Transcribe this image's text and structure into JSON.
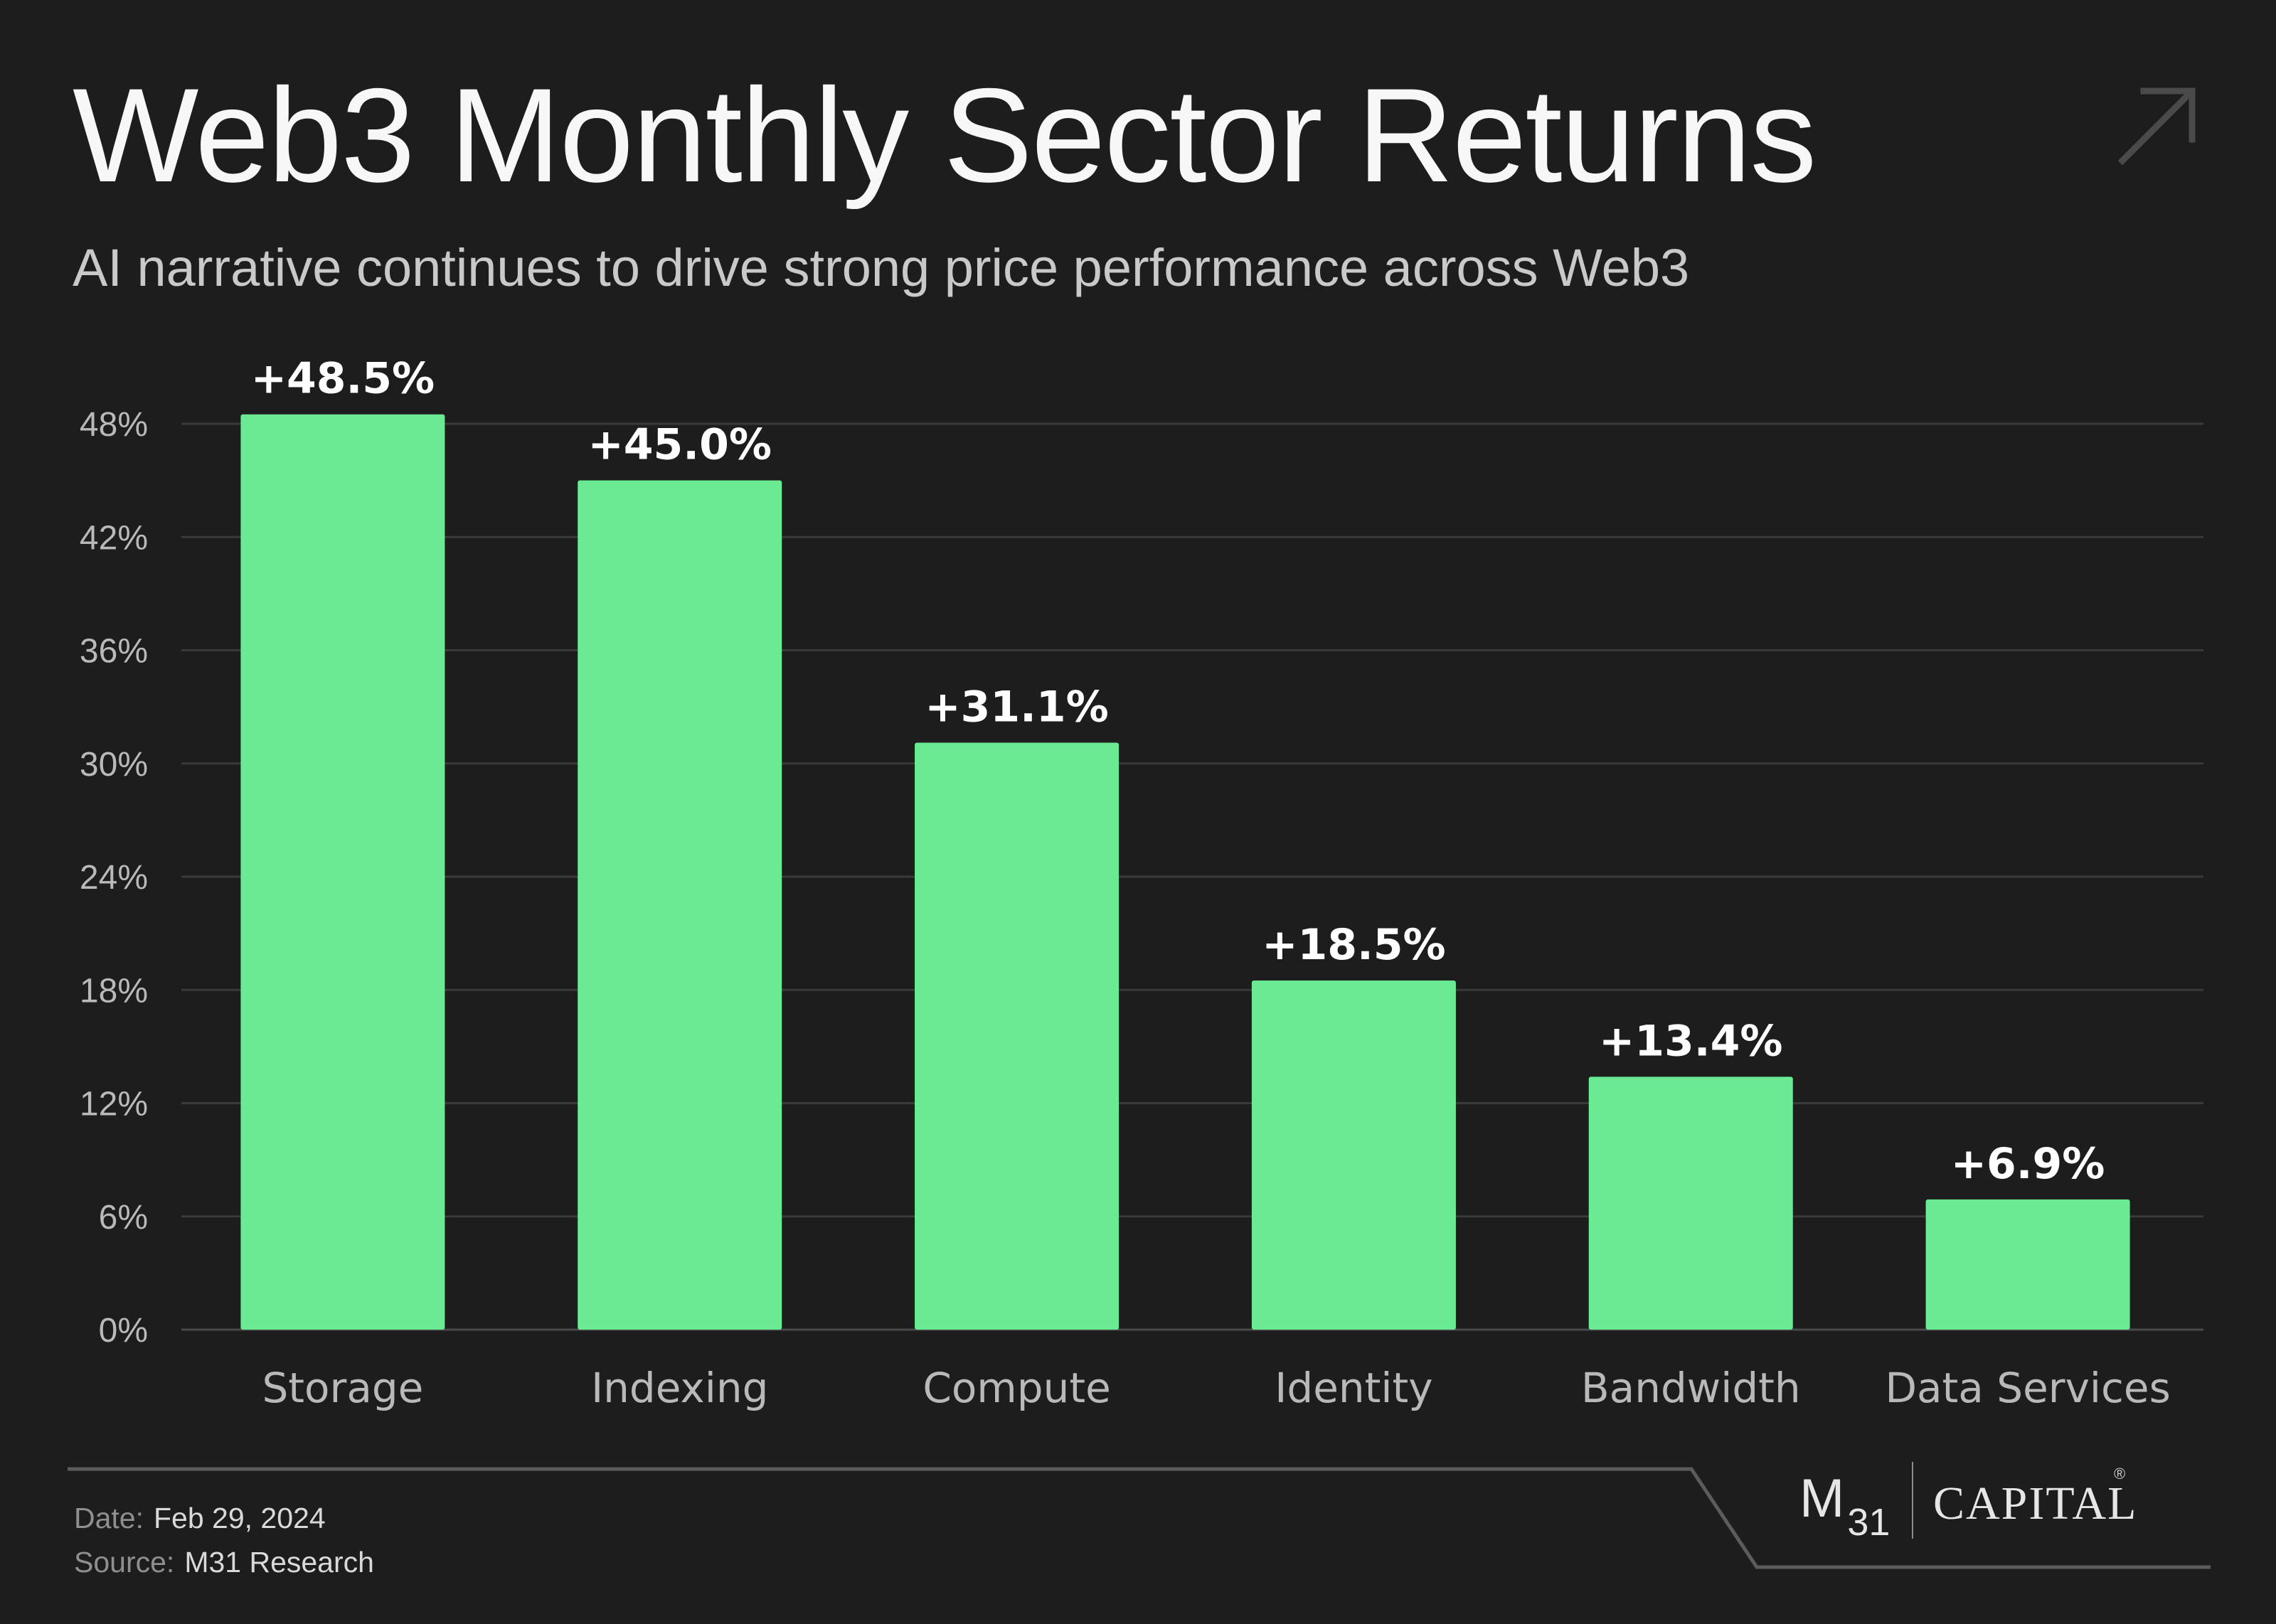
{
  "header": {
    "title": "Web3 Monthly Sector Returns",
    "subtitle": "AI narrative continues to drive strong price performance across Web3",
    "corner_icon": "arrow-up-right-icon"
  },
  "footer": {
    "date_label": "Date:",
    "date_value": "Feb 29, 2024",
    "source_label": "Source:",
    "source_value": "M31 Research",
    "logo": {
      "mark": "M",
      "mark_sub": "31",
      "wordmark": "CAPITAL",
      "registered": "®"
    }
  },
  "colors": {
    "background": "#1d1d1e",
    "bar": "#6aeb93",
    "grid": "#3a3a3b",
    "axis_text": "#b9b9b9",
    "label_text": "#ffffff"
  },
  "chart_data": {
    "type": "bar",
    "title": "Web3 Monthly Sector Returns",
    "subtitle": "AI narrative continues to drive strong price performance across Web3",
    "xlabel": "",
    "ylabel": "",
    "categories": [
      "Storage",
      "Indexing",
      "Compute",
      "Identity",
      "Bandwidth",
      "Data Services"
    ],
    "values": [
      48.5,
      45.0,
      31.1,
      18.5,
      13.4,
      6.9
    ],
    "data_labels": [
      "+48.5%",
      "+45.0%",
      "+31.1%",
      "+18.5%",
      "+13.4%",
      "+6.9%"
    ],
    "ylim": [
      0,
      48
    ],
    "yticks": [
      0,
      6,
      12,
      18,
      24,
      30,
      36,
      42,
      48
    ],
    "ytick_labels": [
      "0%",
      "6%",
      "12%",
      "18%",
      "24%",
      "30%",
      "36%",
      "42%",
      "48%"
    ],
    "grid": true,
    "legend": "none"
  }
}
